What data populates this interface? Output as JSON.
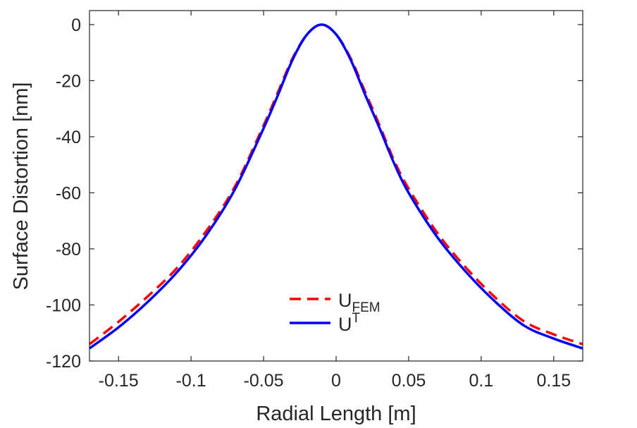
{
  "chart_data": {
    "type": "line",
    "title": "",
    "xlabel": "Radial Length [m]",
    "ylabel": "Surface Distortion [nm]",
    "xlim": [
      -0.17,
      0.17
    ],
    "ylim": [
      -120,
      5
    ],
    "xticks": [
      -0.15,
      -0.1,
      -0.05,
      0,
      0.05,
      0.1,
      0.15
    ],
    "xtick_labels": [
      "-0.15",
      "-0.1",
      "-0.05",
      "0",
      "0.05",
      "0.1",
      "0.15"
    ],
    "yticks": [
      0,
      -20,
      -40,
      -60,
      -80,
      -100,
      -120
    ],
    "ytick_labels": [
      "0",
      "-20",
      "-40",
      "-60",
      "-80",
      "-100",
      "-120"
    ],
    "grid": false,
    "legend_position": "bottom-center",
    "series": [
      {
        "name": "U_FEM",
        "legend_main": "U",
        "legend_script": "FEM",
        "script_type": "subscript",
        "color": "#ff0000",
        "style": "dashed",
        "x": [
          -0.17,
          -0.15,
          -0.13,
          -0.11,
          -0.09,
          -0.07,
          -0.05,
          -0.04,
          -0.03,
          -0.02,
          -0.01,
          0.0,
          0.01,
          0.02,
          0.03,
          0.04,
          0.05,
          0.07,
          0.09,
          0.11,
          0.13,
          0.15,
          0.17
        ],
        "y": [
          -114,
          -106,
          -97,
          -87,
          -74,
          -58,
          -36,
          -24,
          -12,
          -3.5,
          0,
          -3.5,
          -12,
          -24,
          -36,
          -48.5,
          -58.5,
          -74.5,
          -87,
          -97.5,
          -106,
          -110.5,
          -114
        ]
      },
      {
        "name": "U^T",
        "legend_main": "U",
        "legend_script": "T",
        "script_type": "superscript",
        "color": "#0000ff",
        "style": "solid",
        "x": [
          -0.17,
          -0.15,
          -0.13,
          -0.11,
          -0.09,
          -0.07,
          -0.05,
          -0.04,
          -0.03,
          -0.02,
          -0.01,
          0.0,
          0.01,
          0.02,
          0.03,
          0.04,
          0.05,
          0.07,
          0.09,
          0.11,
          0.13,
          0.15,
          0.17
        ],
        "y": [
          -115.5,
          -108,
          -99,
          -88.5,
          -75.5,
          -59,
          -37,
          -25,
          -12.5,
          -3.5,
          0,
          -3.5,
          -12.5,
          -25,
          -37,
          -49.5,
          -60,
          -76,
          -88.5,
          -99,
          -107.5,
          -112,
          -115.5
        ]
      }
    ]
  }
}
